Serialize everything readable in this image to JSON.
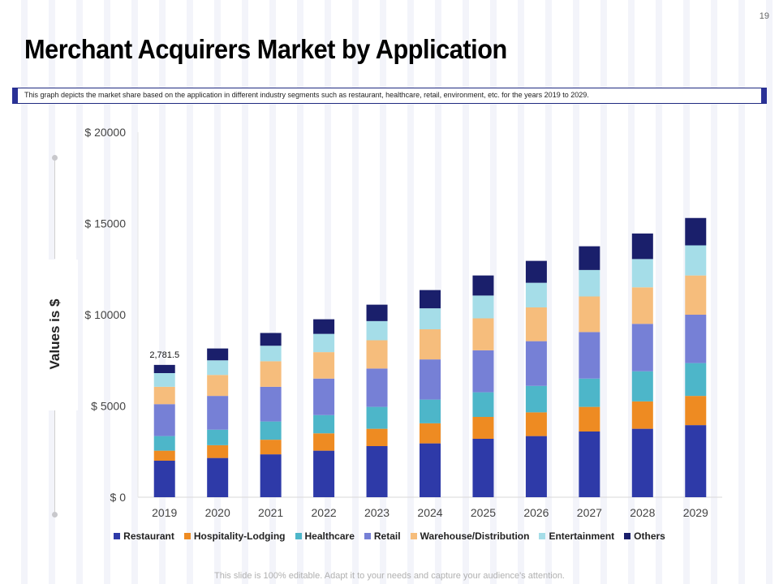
{
  "page": {
    "number": "19",
    "title": "Merchant Acquirers Market by Application",
    "description": "This graph depicts the market share based on the application in different industry segments such as restaurant, healthcare, retail, environment, etc. for the years 2019 to 2029.",
    "footer": "This slide is 100% editable. Adapt it to your needs and capture your audience's attention."
  },
  "chart_data": {
    "type": "bar",
    "stacked": true,
    "title": "Merchant Acquirers Market by Application",
    "xlabel": "",
    "ylabel": "Values is $",
    "ylim": [
      0,
      20000
    ],
    "yticks": [
      0,
      5000,
      10000,
      15000,
      20000
    ],
    "ytick_labels": [
      "$ 0",
      "$ 5000",
      "$ 10000",
      "$ 15000",
      "$ 20000"
    ],
    "categories": [
      "2019",
      "2020",
      "2021",
      "2022",
      "2023",
      "2024",
      "2025",
      "2026",
      "2027",
      "2028",
      "2029"
    ],
    "series": [
      {
        "name": "Restaurant",
        "color": "#2e3aa8",
        "values": [
          2000,
          2150,
          2350,
          2550,
          2800,
          2950,
          3200,
          3350,
          3600,
          3750,
          3950
        ]
      },
      {
        "name": "Hospitality-Lodging",
        "color": "#ee8b22",
        "values": [
          550,
          700,
          800,
          950,
          950,
          1100,
          1200,
          1300,
          1350,
          1500,
          1600
        ]
      },
      {
        "name": "Healthcare",
        "color": "#4db6c9",
        "values": [
          800,
          850,
          1000,
          1000,
          1200,
          1300,
          1350,
          1450,
          1550,
          1650,
          1800
        ]
      },
      {
        "name": "Retail",
        "color": "#7680d6",
        "values": [
          1750,
          1850,
          1900,
          2000,
          2100,
          2200,
          2300,
          2450,
          2550,
          2600,
          2650
        ]
      },
      {
        "name": "Warehouse/Distribution",
        "color": "#f6bd7c",
        "values": [
          950,
          1150,
          1400,
          1450,
          1550,
          1650,
          1750,
          1850,
          1950,
          2000,
          2150
        ]
      },
      {
        "name": "Entertainment",
        "color": "#a5dde8",
        "values": [
          750,
          800,
          850,
          1000,
          1050,
          1150,
          1250,
          1350,
          1450,
          1550,
          1650
        ]
      },
      {
        "name": "Others",
        "color": "#1a1f6b",
        "values": [
          450,
          650,
          700,
          800,
          900,
          1000,
          1100,
          1200,
          1300,
          1400,
          1500
        ]
      }
    ],
    "annotations": [
      {
        "category": "2019",
        "text": "2,781.5"
      }
    ],
    "legend_position": "bottom"
  }
}
